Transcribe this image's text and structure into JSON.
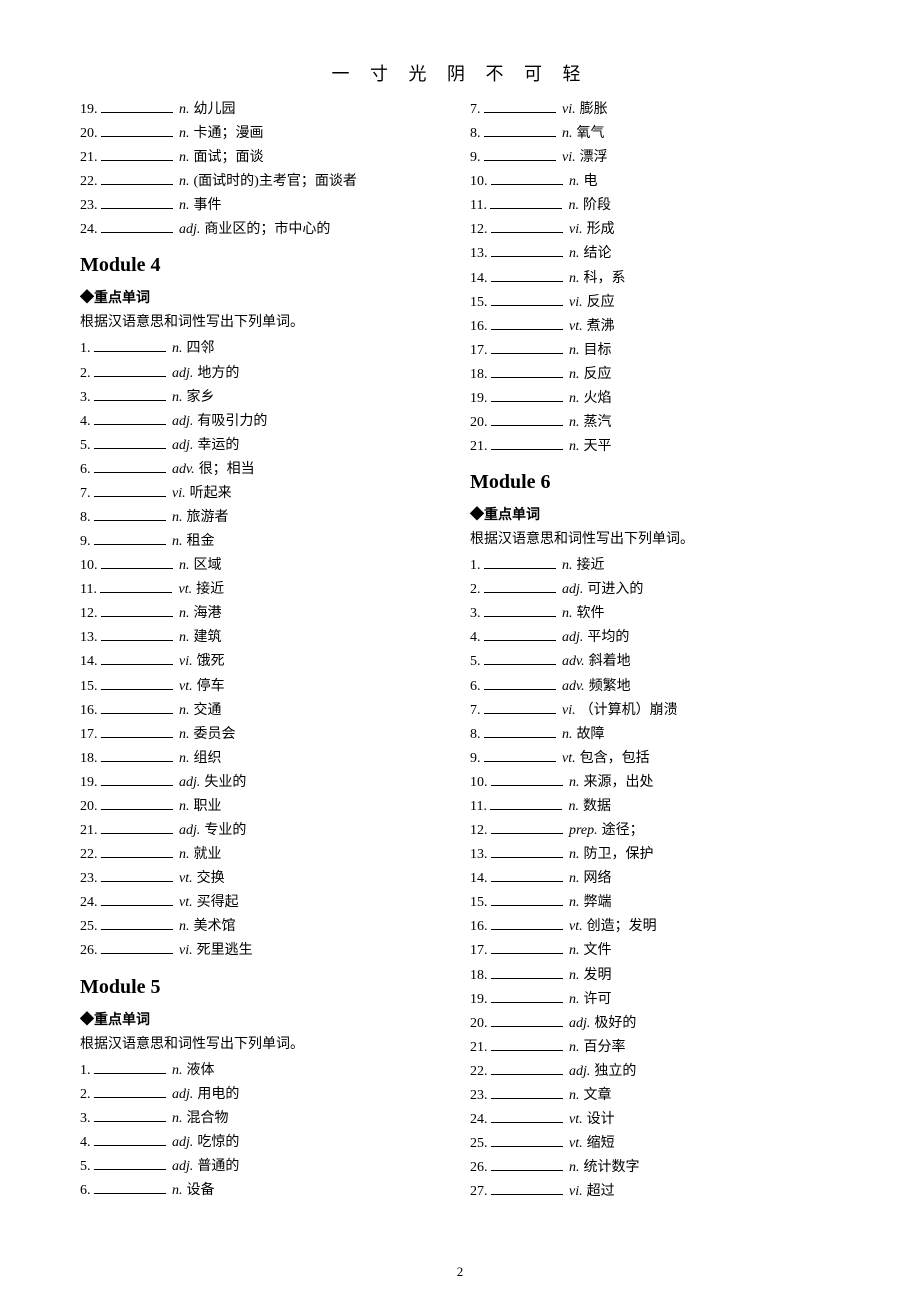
{
  "header_title": "一 寸 光 阴 不 可 轻",
  "page_number": "2",
  "section_label": "◆重点单词",
  "instruction_text": "根据汉语意思和词性写出下列单词。",
  "left_column": {
    "initial_items": [
      {
        "num": "19.",
        "pos": "n.",
        "def": "幼儿园"
      },
      {
        "num": "20.",
        "pos": "n.",
        "def": "卡通；漫画"
      },
      {
        "num": "21.",
        "pos": "n.",
        "def": "面试；面谈"
      },
      {
        "num": "22.",
        "pos": "n.",
        "def": "(面试时的)主考官；面谈者"
      },
      {
        "num": "23.",
        "pos": "n.",
        "def": "事件"
      },
      {
        "num": "24.",
        "pos": "adj.",
        "def": "商业区的；市中心的"
      }
    ],
    "module4": {
      "title": "Module 4",
      "items": [
        {
          "num": "1.",
          "pos": "n.",
          "def": "四邻"
        },
        {
          "num": "2.",
          "pos": "adj.",
          "def": "地方的"
        },
        {
          "num": "3.",
          "pos": "n.",
          "def": "家乡"
        },
        {
          "num": "4.",
          "pos": "adj.",
          "def": "有吸引力的"
        },
        {
          "num": "5.",
          "pos": "adj.",
          "def": "幸运的"
        },
        {
          "num": "6.",
          "pos": "adv.",
          "def": "很；相当"
        },
        {
          "num": "7.",
          "pos": "vi.",
          "def": "听起来"
        },
        {
          "num": "8.",
          "pos": "n.",
          "def": "旅游者"
        },
        {
          "num": "9.",
          "pos": "n.",
          "def": "租金"
        },
        {
          "num": "10.",
          "pos": "n.",
          "def": "区域"
        },
        {
          "num": "11.",
          "pos": "vt.",
          "def": "接近"
        },
        {
          "num": "12.",
          "pos": "n.",
          "def": "海港"
        },
        {
          "num": "13.",
          "pos": "n.",
          "def": "建筑"
        },
        {
          "num": "14.",
          "pos": "vi.",
          "def": "饿死"
        },
        {
          "num": "15.",
          "pos": "vt.",
          "def": "停车"
        },
        {
          "num": "16.",
          "pos": "n.",
          "def": "交通"
        },
        {
          "num": "17.",
          "pos": "n.",
          "def": "委员会"
        },
        {
          "num": "18.",
          "pos": "n.",
          "def": "组织"
        },
        {
          "num": "19.",
          "pos": "adj.",
          "def": "失业的"
        },
        {
          "num": "20.",
          "pos": "n.",
          "def": "职业"
        },
        {
          "num": "21.",
          "pos": "adj.",
          "def": "专业的"
        },
        {
          "num": "22.",
          "pos": "n.",
          "def": "就业"
        },
        {
          "num": "23.",
          "pos": "vt.",
          "def": "交换"
        },
        {
          "num": "24.",
          "pos": "vt.",
          "def": "买得起"
        },
        {
          "num": "25.",
          "pos": "n.",
          "def": "美术馆"
        },
        {
          "num": "26.",
          "pos": "vi.",
          "def": "死里逃生"
        }
      ]
    },
    "module5": {
      "title": "Module 5",
      "items": [
        {
          "num": "1.",
          "pos": "n.",
          "def": "液体"
        },
        {
          "num": "2.",
          "pos": "adj.",
          "def": "用电的"
        },
        {
          "num": "3.",
          "pos": "n.",
          "def": "混合物"
        },
        {
          "num": "4.",
          "pos": "adj.",
          "def": "吃惊的"
        },
        {
          "num": "5.",
          "pos": "adj.",
          "def": "普通的"
        },
        {
          "num": "6.",
          "pos": "n.",
          "def": "设备"
        }
      ]
    }
  },
  "right_column": {
    "initial_items": [
      {
        "num": "7.",
        "pos": "vi.",
        "def": "膨胀"
      },
      {
        "num": "8.",
        "pos": "n.",
        "def": "氧气"
      },
      {
        "num": "9.",
        "pos": "vi.",
        "def": "漂浮"
      },
      {
        "num": "10.",
        "pos": "n.",
        "def": "电"
      },
      {
        "num": "11.",
        "pos": "n.",
        "def": "阶段"
      },
      {
        "num": "12.",
        "pos": "vi.",
        "def": "形成"
      },
      {
        "num": "13.",
        "pos": "n.",
        "def": "结论"
      },
      {
        "num": "14.",
        "pos": "n.",
        "def": "科，系"
      },
      {
        "num": "15.",
        "pos": "vi.",
        "def": "反应"
      },
      {
        "num": "16.",
        "pos": "vt.",
        "def": "煮沸"
      },
      {
        "num": "17.",
        "pos": "n.",
        "def": "目标"
      },
      {
        "num": "18.",
        "pos": "n.",
        "def": "反应"
      },
      {
        "num": "19.",
        "pos": "n.",
        "def": "火焰"
      },
      {
        "num": "20.",
        "pos": "n.",
        "def": "蒸汽"
      },
      {
        "num": "21.",
        "pos": "n.",
        "def": "天平"
      }
    ],
    "module6": {
      "title": "Module 6",
      "items": [
        {
          "num": "1.",
          "pos": "n.",
          "def": "接近"
        },
        {
          "num": "2.",
          "pos": "adj.",
          "def": "可进入的"
        },
        {
          "num": "3.",
          "pos": "n.",
          "def": "软件"
        },
        {
          "num": "4.",
          "pos": "adj.",
          "def": "平均的"
        },
        {
          "num": "5.",
          "pos": "adv.",
          "def": "斜着地"
        },
        {
          "num": "6.",
          "pos": "adv.",
          "def": "频繁地"
        },
        {
          "num": "7.",
          "pos": "vi.",
          "def": "（计算机）崩溃"
        },
        {
          "num": "8.",
          "pos": "n.",
          "def": "故障"
        },
        {
          "num": "9.",
          "pos": "vt.",
          "def": "包含，包括"
        },
        {
          "num": "10.",
          "pos": "n.",
          "def": "来源，出处"
        },
        {
          "num": "11.",
          "pos": "n.",
          "def": "数据"
        },
        {
          "num": "12.",
          "pos": "prep.",
          "def": "途径；"
        },
        {
          "num": "13.",
          "pos": "n.",
          "def": "防卫，保护"
        },
        {
          "num": "14.",
          "pos": "n.",
          "def": "网络"
        },
        {
          "num": "15.",
          "pos": "n.",
          "def": "弊端"
        },
        {
          "num": "16.",
          "pos": "vt.",
          "def": "创造；发明"
        },
        {
          "num": "17.",
          "pos": "n.",
          "def": "文件"
        },
        {
          "num": "18.",
          "pos": "n.",
          "def": "发明"
        },
        {
          "num": "19.",
          "pos": "n.",
          "def": "许可"
        },
        {
          "num": "20.",
          "pos": "adj.",
          "def": "极好的"
        },
        {
          "num": "21.",
          "pos": "n.",
          "def": "百分率"
        },
        {
          "num": "22.",
          "pos": "adj.",
          "def": "独立的"
        },
        {
          "num": "23.",
          "pos": "n.",
          "def": "文章"
        },
        {
          "num": "24.",
          "pos": "vt.",
          "def": "设计"
        },
        {
          "num": "25.",
          "pos": "vt.",
          "def": "缩短"
        },
        {
          "num": "26.",
          "pos": "n.",
          "def": "统计数字"
        },
        {
          "num": "27.",
          "pos": "vi.",
          "def": "超过"
        }
      ]
    }
  }
}
